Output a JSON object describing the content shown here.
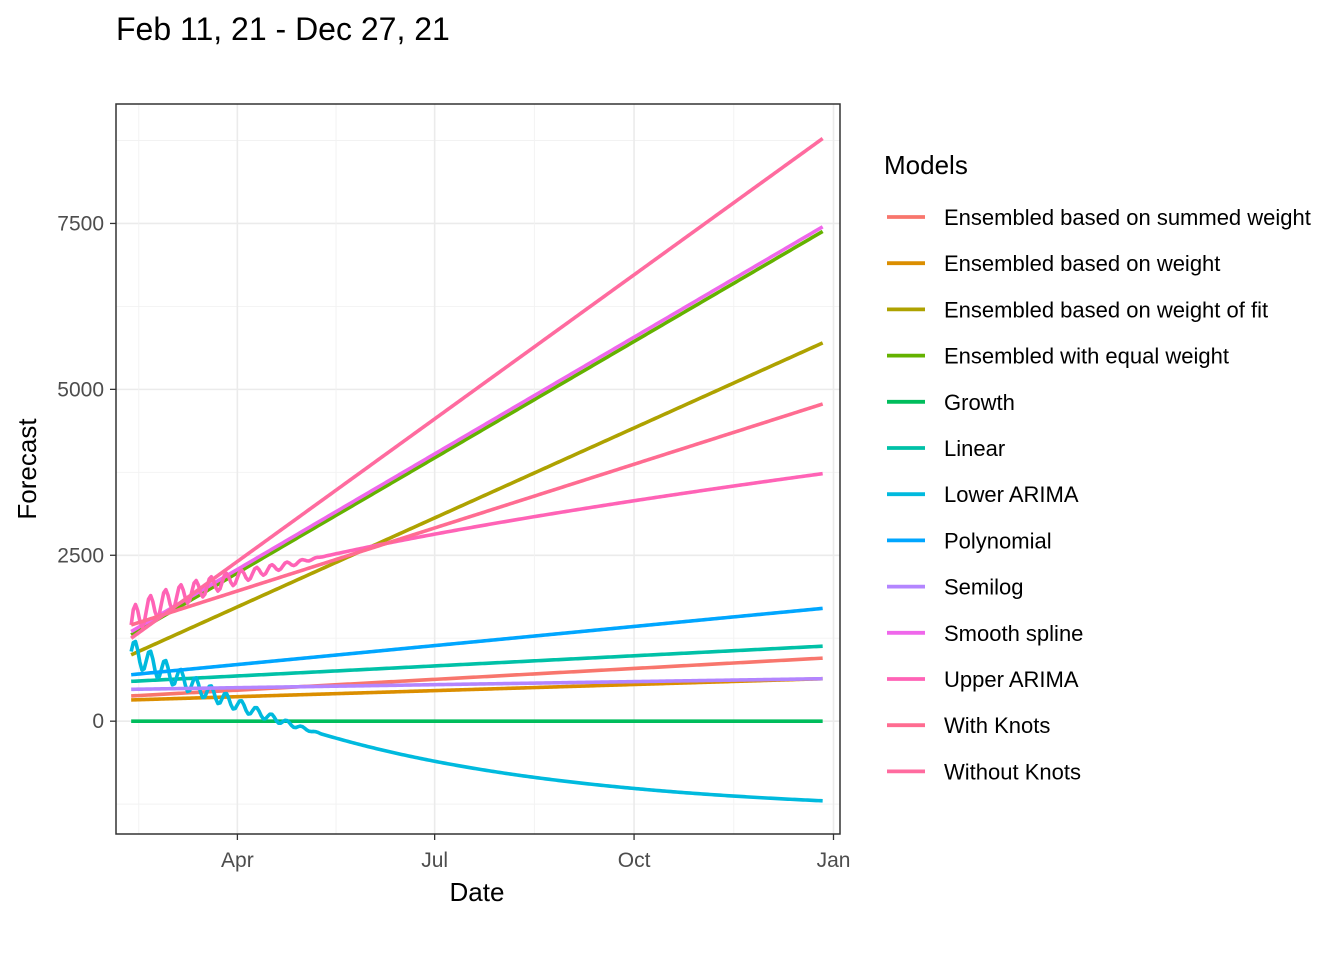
{
  "chart_data": {
    "type": "line",
    "title": "Feb 11, 21 - Dec 27, 21",
    "xlabel": "Date",
    "ylabel": "Forecast",
    "x_range": [
      "2021-02-11",
      "2021-12-27"
    ],
    "xlim": [
      "2021-02-04",
      "2022-01-04"
    ],
    "x_ticks": [
      {
        "label": "Apr",
        "date": "2021-04-01"
      },
      {
        "label": "Jul",
        "date": "2021-07-01"
      },
      {
        "label": "Oct",
        "date": "2021-10-01"
      },
      {
        "label": "Jan",
        "date": "2022-01-01"
      }
    ],
    "ylim": [
      -1700,
      9300
    ],
    "y_ticks": [
      0,
      2500,
      5000,
      7500
    ],
    "grid": true,
    "legend": {
      "title": "Models",
      "position": "right"
    },
    "series": [
      {
        "name": "Ensembled based on summed weight",
        "color": "#F8766D",
        "kind": "linear",
        "start": 380,
        "end": 950
      },
      {
        "name": "Ensembled based on weight",
        "color": "#DB8E00",
        "kind": "linear",
        "start": 320,
        "end": 640
      },
      {
        "name": "Ensembled based on weight of fit",
        "color": "#AEA200",
        "kind": "linear",
        "start": 1000,
        "end": 5700
      },
      {
        "name": "Ensembled with equal weight",
        "color": "#64B200",
        "kind": "linear",
        "start": 1300,
        "end": 7380
      },
      {
        "name": "Growth",
        "color": "#00BD5C",
        "kind": "linear",
        "start": 0,
        "end": 0
      },
      {
        "name": "Linear",
        "color": "#00C1A7",
        "kind": "linear",
        "start": 600,
        "end": 1130
      },
      {
        "name": "Lower ARIMA",
        "color": "#00BADE",
        "kind": "decay",
        "start": 1050,
        "end": -1200,
        "osc_amp": 200,
        "osc_days": 38
      },
      {
        "name": "Polynomial",
        "color": "#00A6FF",
        "kind": "linear",
        "start": 700,
        "end": 1700
      },
      {
        "name": "Semilog",
        "color": "#B385FF",
        "kind": "linear",
        "start": 480,
        "end": 640
      },
      {
        "name": "Smooth spline",
        "color": "#EF67EB",
        "kind": "linear",
        "start": 1350,
        "end": 7450
      },
      {
        "name": "Upper ARIMA",
        "color": "#FF63B6",
        "kind": "sqrt",
        "start": 1450,
        "end": 3730,
        "osc_amp": 220,
        "osc_days": 28
      },
      {
        "name": "With Knots",
        "color": "#FF6C91",
        "kind": "linear",
        "start": 1450,
        "end": 4780
      },
      {
        "name": "Without Knots",
        "color": "#FF6B9F",
        "kind": "linear",
        "start": 1250,
        "end": 8780
      }
    ]
  }
}
